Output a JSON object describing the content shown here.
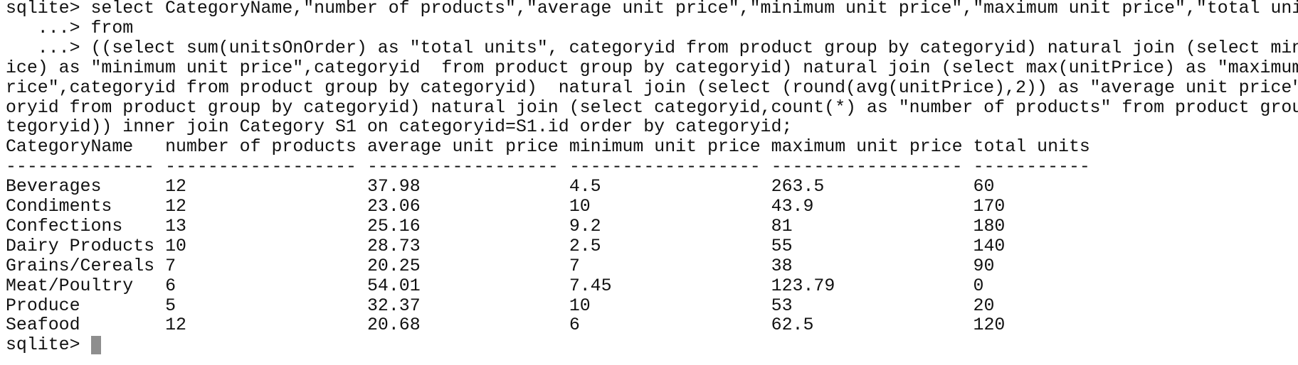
{
  "prompt": "sqlite>",
  "command_lines": [
    "sqlite> select CategoryName,\"number of products\",\"average unit price\",\"minimum unit price\",\"maximum unit price\",\"total units\"",
    "   ...> from",
    "   ...> ((select sum(unitsOnOrder) as \"total units\", categoryid from product group by categoryid) natural join (select min(unitPr",
    "ice) as \"minimum unit price\",categoryid  from product group by categoryid) natural join (select max(unitPrice) as \"maximum unit p",
    "rice\",categoryid from product group by categoryid)  natural join (select (round(avg(unitPrice),2)) as \"average unit price\", categ",
    "oryid from product group by categoryid) natural join (select categoryid,count(*) as \"number of products\" from product group by ca",
    "tegoryid)) inner join Category S1 on categoryid=S1.id order by categoryid;"
  ],
  "table": {
    "headers": [
      "CategoryName",
      "number of products",
      "average unit price",
      "minimum unit price",
      "maximum unit price",
      "total units"
    ],
    "separators": [
      "--------------",
      "------------------",
      "------------------",
      "------------------",
      "------------------",
      "-----------"
    ],
    "rows": [
      [
        "Beverages",
        "12",
        "37.98",
        "4.5",
        "263.5",
        "60"
      ],
      [
        "Condiments",
        "12",
        "23.06",
        "10",
        "43.9",
        "170"
      ],
      [
        "Confections",
        "13",
        "25.16",
        "9.2",
        "81",
        "180"
      ],
      [
        "Dairy Products",
        "10",
        "28.73",
        "2.5",
        "55",
        "140"
      ],
      [
        "Grains/Cereals",
        "7",
        "20.25",
        "7",
        "38",
        "90"
      ],
      [
        "Meat/Poultry",
        "6",
        "54.01",
        "7.45",
        "123.79",
        "0"
      ],
      [
        "Produce",
        "5",
        "32.37",
        "10",
        "53",
        "20"
      ],
      [
        "Seafood",
        "12",
        "20.68",
        "6",
        "62.5",
        "120"
      ]
    ]
  }
}
